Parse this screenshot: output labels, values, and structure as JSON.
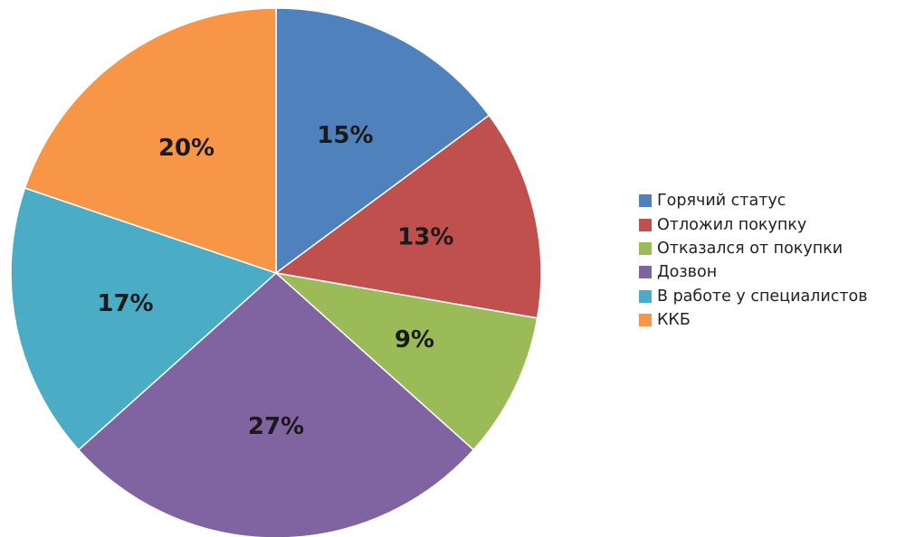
{
  "chart_data": {
    "type": "pie",
    "legend_position": "right",
    "slices": [
      {
        "label": "Горячий статус",
        "value": 15,
        "display": "15%",
        "color": "#4f81bd"
      },
      {
        "label": "Отложил покупку",
        "value": 13,
        "display": "13%",
        "color": "#c0504d"
      },
      {
        "label": "Отказался от покупки",
        "value": 9,
        "display": "9%",
        "color": "#9bbb59"
      },
      {
        "label": "Дозвон",
        "value": 27,
        "display": "27%",
        "color": "#8064a2"
      },
      {
        "label": "В работе у специалистов",
        "value": 17,
        "display": "17%",
        "color": "#4bacc6"
      },
      {
        "label": "ККБ",
        "value": 20,
        "display": "20%",
        "color": "#f79646"
      }
    ]
  }
}
